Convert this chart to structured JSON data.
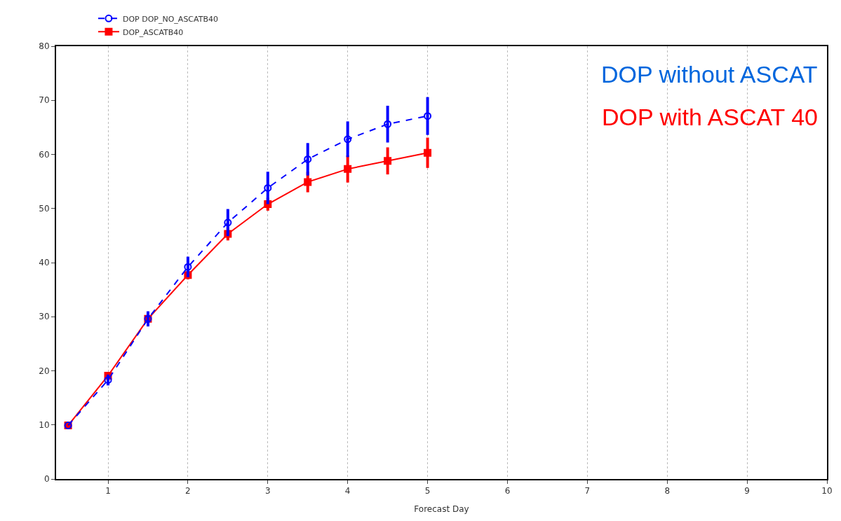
{
  "chart_data": {
    "type": "line",
    "xlabel": "Forecast Day",
    "x": [
      0.5,
      1,
      1.5,
      2,
      2.5,
      3,
      3.5,
      4,
      4.5,
      5
    ],
    "series": [
      {
        "name": "DOP DOP_NO_ASCATB40",
        "color": "#0000ff",
        "marker": "circle",
        "line_style": "dashed",
        "values": [
          9.9,
          18.3,
          29.6,
          39.2,
          47.4,
          53.8,
          59.1,
          62.8,
          65.6,
          67.1
        ],
        "errors": [
          null,
          1,
          1.4,
          1.9,
          2.5,
          3,
          3,
          3.3,
          3.4,
          3.5
        ]
      },
      {
        "name": "DOP_ASCATB40",
        "color": "#ff0000",
        "marker": "square",
        "line_style": "solid",
        "values": [
          9.9,
          19.1,
          29.6,
          37.7,
          45.3,
          50.8,
          54.9,
          57.3,
          58.8,
          60.3
        ],
        "errors": [
          null,
          0.6,
          0.5,
          0.8,
          1.2,
          1.2,
          1.9,
          2.5,
          2.5,
          2.8
        ]
      }
    ],
    "annotations": [
      "DOP without ASCAT",
      "DOP with ASCAT 40"
    ],
    "xlim": [
      0.35,
      10
    ],
    "xticks": [
      1,
      2,
      3,
      4,
      5,
      6,
      7,
      8,
      9,
      10
    ],
    "ylim": [
      0,
      80
    ],
    "yticks": [
      0,
      10,
      20,
      30,
      40,
      50,
      60,
      70,
      80
    ],
    "grid": "x",
    "legend": "top left"
  }
}
